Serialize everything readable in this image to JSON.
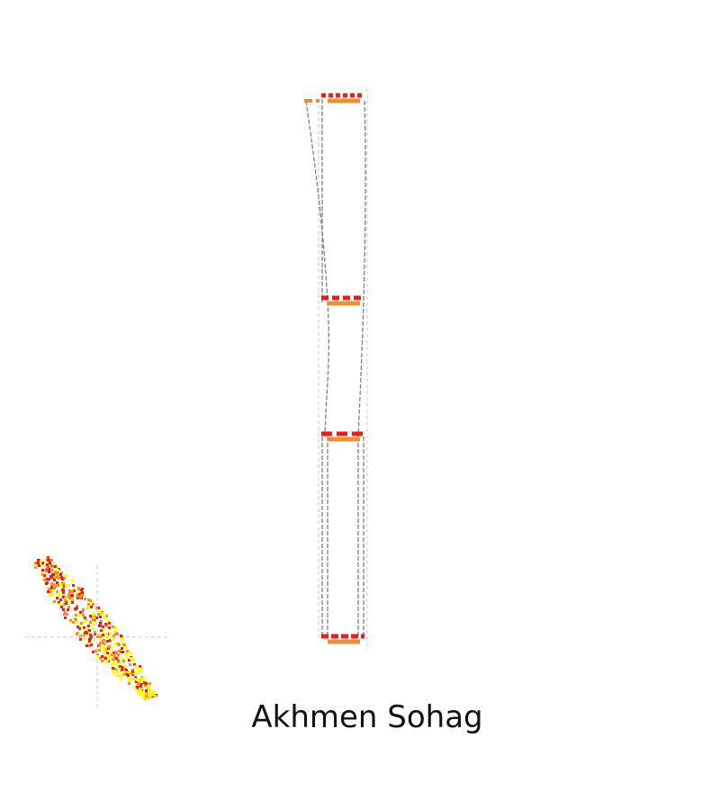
{
  "title": "Akhmen Sohag",
  "colors": {
    "background": "#ffffff",
    "bar_red": "#e61e1e",
    "bar_orange": "#f08c32",
    "connector_gray": "#808080",
    "guide_gray": "#c8c8c8",
    "map_red": "#e61e1e",
    "map_orange": "#f08c32",
    "map_yellow": "#ffff00"
  },
  "levels": [
    {
      "level": 1,
      "segments": [
        "red",
        "orange"
      ]
    },
    {
      "level": 2,
      "segments": [
        "red",
        "orange"
      ]
    },
    {
      "level": 3,
      "segments": [
        "red",
        "orange"
      ]
    },
    {
      "level": 4,
      "segments": [
        "red",
        "orange"
      ]
    }
  ]
}
